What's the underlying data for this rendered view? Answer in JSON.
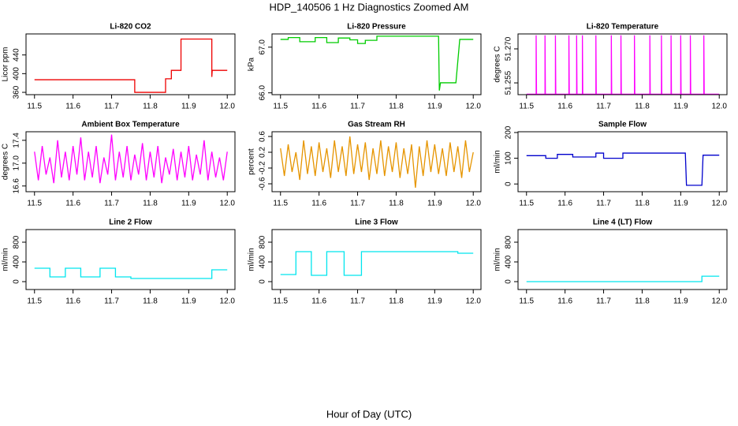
{
  "title": "HDP_140506  1 Hz Diagnostics Zoomed AM",
  "xlabel": "Hour of Day (UTC)",
  "chart_data": [
    {
      "type": "line",
      "title": "Li-820 CO2",
      "ylabel": "Licor ppm",
      "color": "#ee0000",
      "x": [
        11.5,
        11.76,
        11.76,
        11.84,
        11.84,
        11.855,
        11.855,
        11.88,
        11.88,
        11.96,
        11.96,
        11.961,
        12
      ],
      "values": [
        387,
        387,
        360,
        360,
        389,
        389,
        407,
        407,
        474,
        474,
        393,
        407,
        407
      ],
      "xlim": [
        11.478,
        12.02
      ],
      "xticks": [
        11.5,
        11.6,
        11.7,
        11.8,
        11.9,
        {
          "value": 12,
          "label": "12.0"
        }
      ],
      "ylim": [
        355,
        485
      ],
      "yticks": [
        360,
        400,
        440
      ]
    },
    {
      "type": "line",
      "title": "Li-820 Pressure",
      "ylabel": "kPa",
      "color": "#00cc00",
      "x": [
        11.5,
        11.52,
        11.52,
        11.55,
        11.55,
        11.59,
        11.59,
        11.62,
        11.62,
        11.65,
        11.65,
        11.68,
        11.68,
        11.7,
        11.7,
        11.72,
        11.72,
        11.75,
        11.75,
        11.91,
        11.912,
        11.915,
        11.955,
        11.965,
        12
      ],
      "values": [
        67.17,
        67.17,
        67.21,
        67.21,
        67.12,
        67.12,
        67.21,
        67.21,
        67.1,
        67.1,
        67.2,
        67.2,
        67.16,
        67.16,
        67.08,
        67.08,
        67.15,
        67.15,
        67.24,
        67.24,
        66.05,
        66.22,
        66.22,
        67.17,
        67.17
      ],
      "xlim": [
        11.478,
        12.02
      ],
      "xticks": [
        11.5,
        11.6,
        11.7,
        11.8,
        11.9,
        {
          "value": 12,
          "label": "12.0"
        }
      ],
      "ylim": [
        65.96,
        67.29
      ],
      "yticks": [
        {
          "value": 66,
          "label": "66.0"
        },
        {
          "value": 67,
          "label": "67.0"
        }
      ]
    },
    {
      "type": "line",
      "title": "Li-820 Temperature",
      "ylabel": "degrees C",
      "color": "#ff00ff",
      "x": [
        11.5,
        11.525,
        11.525,
        11.526,
        11.548,
        11.548,
        11.549,
        11.575,
        11.575,
        11.576,
        11.61,
        11.61,
        11.611,
        11.63,
        11.63,
        11.631,
        11.645,
        11.645,
        11.646,
        11.68,
        11.68,
        11.681,
        11.72,
        11.72,
        11.721,
        11.745,
        11.745,
        11.746,
        11.78,
        11.78,
        11.781,
        11.82,
        11.82,
        11.821,
        11.85,
        11.85,
        11.851,
        11.875,
        11.875,
        11.876,
        11.9,
        11.9,
        11.901,
        11.925,
        11.925,
        11.926,
        11.96,
        11.96,
        11.961,
        12
      ],
      "values": [
        51.25,
        51.25,
        51.276,
        51.25,
        51.25,
        51.276,
        51.25,
        51.25,
        51.276,
        51.25,
        51.25,
        51.276,
        51.25,
        51.25,
        51.276,
        51.25,
        51.25,
        51.276,
        51.25,
        51.25,
        51.276,
        51.25,
        51.25,
        51.276,
        51.25,
        51.25,
        51.276,
        51.25,
        51.25,
        51.276,
        51.25,
        51.25,
        51.276,
        51.25,
        51.25,
        51.276,
        51.25,
        51.25,
        51.276,
        51.25,
        51.25,
        51.276,
        51.25,
        51.25,
        51.276,
        51.25,
        51.25,
        51.276,
        51.25,
        51.25
      ],
      "xlim": [
        11.478,
        12.02
      ],
      "xticks": [
        11.5,
        11.6,
        11.7,
        11.8,
        11.9,
        {
          "value": 12,
          "label": "12.0"
        }
      ],
      "ylim": [
        51.2498,
        51.2766
      ],
      "yticks": [
        51.255,
        {
          "value": 51.27,
          "label": "51.270"
        }
      ]
    },
    {
      "type": "line",
      "title": "Ambient Box Temperature",
      "ylabel": "degrees C",
      "color": "#ff00ff",
      "x": [
        11.5,
        11.51,
        11.52,
        11.53,
        11.54,
        11.55,
        11.56,
        11.57,
        11.58,
        11.59,
        11.6,
        11.61,
        11.62,
        11.63,
        11.64,
        11.65,
        11.66,
        11.67,
        11.68,
        11.69,
        11.7,
        11.71,
        11.72,
        11.73,
        11.74,
        11.75,
        11.76,
        11.77,
        11.78,
        11.79,
        11.8,
        11.81,
        11.82,
        11.83,
        11.84,
        11.85,
        11.86,
        11.87,
        11.88,
        11.89,
        11.9,
        11.91,
        11.92,
        11.93,
        11.94,
        11.95,
        11.96,
        11.97,
        11.98,
        11.99,
        12
      ],
      "values": [
        17.2,
        16.7,
        17.3,
        16.8,
        17.1,
        16.65,
        17.4,
        16.75,
        17.2,
        16.7,
        17.3,
        16.8,
        17.45,
        16.7,
        17.2,
        16.75,
        17.3,
        16.65,
        17.1,
        16.8,
        17.5,
        16.7,
        17.2,
        16.75,
        17.3,
        16.7,
        17.15,
        16.8,
        17.35,
        16.7,
        17.2,
        16.75,
        17.3,
        16.65,
        17.1,
        16.8,
        17.25,
        16.7,
        17.2,
        16.75,
        17.3,
        16.7,
        17.15,
        16.8,
        17.4,
        16.7,
        17.2,
        16.75,
        17.1,
        16.7,
        17.2
      ],
      "xlim": [
        11.478,
        12.02
      ],
      "xticks": [
        11.5,
        11.6,
        11.7,
        11.8,
        11.9,
        {
          "value": 12,
          "label": "12.0"
        }
      ],
      "ylim": [
        16.5,
        17.55
      ],
      "yticks": [
        16.6,
        {
          "value": 17,
          "label": "17.0"
        },
        17.4
      ]
    },
    {
      "type": "line",
      "title": "Gas Stream RH",
      "ylabel": "percent",
      "color": "#e69500",
      "x": [
        11.5,
        11.51,
        11.52,
        11.53,
        11.54,
        11.55,
        11.56,
        11.57,
        11.58,
        11.59,
        11.6,
        11.61,
        11.62,
        11.63,
        11.64,
        11.65,
        11.66,
        11.67,
        11.68,
        11.69,
        11.7,
        11.71,
        11.72,
        11.73,
        11.74,
        11.75,
        11.76,
        11.77,
        11.78,
        11.79,
        11.8,
        11.81,
        11.82,
        11.83,
        11.84,
        11.85,
        11.86,
        11.87,
        11.88,
        11.89,
        11.9,
        11.91,
        11.92,
        11.93,
        11.94,
        11.95,
        11.96,
        11.97,
        11.98,
        11.99,
        12
      ],
      "values": [
        0.3,
        -0.4,
        0.4,
        -0.3,
        0.2,
        -0.5,
        0.5,
        -0.35,
        0.35,
        -0.4,
        0.45,
        -0.3,
        0.3,
        -0.45,
        0.5,
        -0.3,
        0.35,
        -0.4,
        0.6,
        -0.35,
        0.4,
        -0.3,
        0.45,
        -0.5,
        0.3,
        -0.35,
        0.5,
        -0.4,
        0.35,
        -0.3,
        0.45,
        -0.45,
        0.3,
        -0.35,
        0.4,
        -0.7,
        0.35,
        -0.4,
        0.5,
        -0.3,
        0.4,
        -0.35,
        0.3,
        -0.4,
        0.45,
        -0.3,
        0.35,
        -0.45,
        0.5,
        -0.3,
        0.2
      ],
      "xlim": [
        11.478,
        12.02
      ],
      "xticks": [
        11.5,
        11.6,
        11.7,
        11.8,
        11.9,
        {
          "value": 12,
          "label": "12.0"
        }
      ],
      "ylim": [
        -0.8,
        0.72
      ],
      "yticks": [
        -0.6,
        -0.2,
        0.2,
        0.6
      ]
    },
    {
      "type": "line",
      "title": "Sample Flow",
      "ylabel": "ml/min",
      "color": "#0000cc",
      "x": [
        11.5,
        11.55,
        11.55,
        11.58,
        11.58,
        11.62,
        11.62,
        11.68,
        11.68,
        11.7,
        11.7,
        11.75,
        11.75,
        11.912,
        11.915,
        11.955,
        11.958,
        12
      ],
      "values": [
        110,
        110,
        100,
        100,
        115,
        115,
        105,
        105,
        120,
        120,
        100,
        100,
        120,
        120,
        -5,
        -5,
        112,
        112
      ],
      "xlim": [
        11.478,
        12.02
      ],
      "xticks": [
        11.5,
        11.6,
        11.7,
        11.8,
        11.9,
        {
          "value": 12,
          "label": "12.0"
        }
      ],
      "ylim": [
        -30,
        203
      ],
      "yticks": [
        0,
        100,
        200
      ]
    },
    {
      "type": "line",
      "title": "Line 2 Flow",
      "ylabel": "ml/min",
      "color": "#00e5ee",
      "x": [
        11.5,
        11.54,
        11.54,
        11.58,
        11.58,
        11.62,
        11.62,
        11.67,
        11.67,
        11.71,
        11.71,
        11.75,
        11.75,
        11.96,
        11.96,
        12
      ],
      "values": [
        272,
        272,
        96,
        96,
        272,
        272,
        96,
        96,
        272,
        272,
        96,
        96,
        64,
        64,
        240,
        240
      ],
      "xlim": [
        11.478,
        12.02
      ],
      "xticks": [
        11.5,
        11.6,
        11.7,
        11.8,
        11.9,
        {
          "value": 12,
          "label": "12.0"
        }
      ],
      "ylim": [
        -160,
        1056
      ],
      "yticks": [
        0,
        400,
        800
      ]
    },
    {
      "type": "line",
      "title": "Line 3 Flow",
      "ylabel": "ml/min",
      "color": "#00e5ee",
      "x": [
        11.5,
        11.54,
        11.54,
        11.58,
        11.58,
        11.62,
        11.62,
        11.665,
        11.665,
        11.71,
        11.71,
        11.96,
        11.96,
        12
      ],
      "values": [
        144,
        144,
        608,
        608,
        128,
        128,
        608,
        608,
        128,
        128,
        608,
        608,
        576,
        576
      ],
      "xlim": [
        11.478,
        12.02
      ],
      "xticks": [
        11.5,
        11.6,
        11.7,
        11.8,
        11.9,
        {
          "value": 12,
          "label": "12.0"
        }
      ],
      "ylim": [
        -160,
        1056
      ],
      "yticks": [
        0,
        400,
        800
      ]
    },
    {
      "type": "line",
      "title": "Line 4 (LT) Flow",
      "ylabel": "ml/min",
      "color": "#00e5ee",
      "x": [
        11.5,
        11.955,
        11.955,
        12
      ],
      "values": [
        0,
        0,
        110,
        110
      ],
      "xlim": [
        11.478,
        12.02
      ],
      "xticks": [
        11.5,
        11.6,
        11.7,
        11.8,
        11.9,
        {
          "value": 12,
          "label": "12.0"
        }
      ],
      "ylim": [
        -160,
        1056
      ],
      "yticks": [
        0,
        400,
        800
      ]
    }
  ]
}
